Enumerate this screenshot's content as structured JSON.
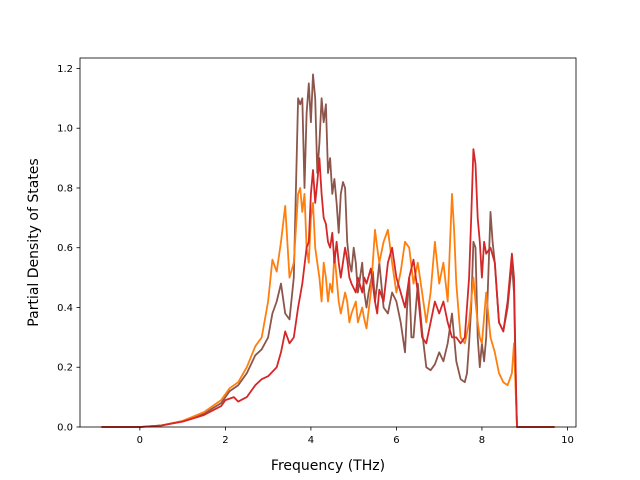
{
  "chart_data": {
    "type": "line",
    "title": "",
    "xlabel": "Frequency (THz)",
    "ylabel": "Partial Density of States",
    "xlim": [
      -1.4,
      10.2
    ],
    "ylim": [
      0.0,
      1.235
    ],
    "xticks": [
      0,
      2,
      4,
      6,
      8,
      10
    ],
    "yticks": [
      0.0,
      0.2,
      0.4,
      0.6,
      0.8,
      1.0,
      1.2
    ],
    "xtick_labels": [
      "0",
      "2",
      "4",
      "6",
      "8",
      "10"
    ],
    "ytick_labels": [
      "0.0",
      "0.2",
      "0.4",
      "0.6",
      "0.8",
      "1.0",
      "1.2"
    ],
    "grid": false,
    "legend": "none",
    "series": [
      {
        "color": "#8c564b",
        "points": [
          [
            -0.9,
            0
          ],
          [
            0,
            0
          ],
          [
            0.5,
            0.005
          ],
          [
            1.0,
            0.02
          ],
          [
            1.5,
            0.045
          ],
          [
            1.9,
            0.08
          ],
          [
            2.1,
            0.12
          ],
          [
            2.3,
            0.14
          ],
          [
            2.5,
            0.18
          ],
          [
            2.7,
            0.24
          ],
          [
            2.85,
            0.26
          ],
          [
            3.0,
            0.3
          ],
          [
            3.1,
            0.38
          ],
          [
            3.2,
            0.42
          ],
          [
            3.3,
            0.48
          ],
          [
            3.4,
            0.38
          ],
          [
            3.5,
            0.36
          ],
          [
            3.6,
            0.5
          ],
          [
            3.7,
            1.1
          ],
          [
            3.75,
            1.08
          ],
          [
            3.8,
            1.1
          ],
          [
            3.85,
            0.8
          ],
          [
            3.9,
            1.05
          ],
          [
            3.95,
            1.15
          ],
          [
            4.0,
            1.02
          ],
          [
            4.05,
            1.18
          ],
          [
            4.1,
            1.1
          ],
          [
            4.15,
            0.85
          ],
          [
            4.2,
            0.95
          ],
          [
            4.25,
            1.1
          ],
          [
            4.3,
            1.02
          ],
          [
            4.35,
            1.08
          ],
          [
            4.4,
            0.85
          ],
          [
            4.45,
            0.9
          ],
          [
            4.5,
            0.78
          ],
          [
            4.55,
            0.83
          ],
          [
            4.6,
            0.75
          ],
          [
            4.65,
            0.65
          ],
          [
            4.7,
            0.78
          ],
          [
            4.75,
            0.82
          ],
          [
            4.8,
            0.8
          ],
          [
            4.85,
            0.62
          ],
          [
            4.9,
            0.55
          ],
          [
            4.95,
            0.52
          ],
          [
            5.0,
            0.6
          ],
          [
            5.05,
            0.55
          ],
          [
            5.1,
            0.45
          ],
          [
            5.2,
            0.55
          ],
          [
            5.25,
            0.45
          ],
          [
            5.3,
            0.4
          ],
          [
            5.35,
            0.45
          ],
          [
            5.45,
            0.52
          ],
          [
            5.5,
            0.42
          ],
          [
            5.55,
            0.48
          ],
          [
            5.6,
            0.55
          ],
          [
            5.7,
            0.4
          ],
          [
            5.8,
            0.38
          ],
          [
            5.9,
            0.45
          ],
          [
            6.0,
            0.42
          ],
          [
            6.1,
            0.35
          ],
          [
            6.2,
            0.25
          ],
          [
            6.25,
            0.4
          ],
          [
            6.3,
            0.5
          ],
          [
            6.35,
            0.3
          ],
          [
            6.4,
            0.3
          ],
          [
            6.5,
            0.48
          ],
          [
            6.6,
            0.32
          ],
          [
            6.7,
            0.2
          ],
          [
            6.8,
            0.19
          ],
          [
            6.9,
            0.21
          ],
          [
            7.0,
            0.25
          ],
          [
            7.1,
            0.22
          ],
          [
            7.2,
            0.28
          ],
          [
            7.3,
            0.38
          ],
          [
            7.4,
            0.22
          ],
          [
            7.5,
            0.16
          ],
          [
            7.6,
            0.15
          ],
          [
            7.65,
            0.18
          ],
          [
            7.7,
            0.28
          ],
          [
            7.75,
            0.4
          ],
          [
            7.8,
            0.62
          ],
          [
            7.85,
            0.6
          ],
          [
            7.9,
            0.3
          ],
          [
            7.95,
            0.2
          ],
          [
            8.0,
            0.28
          ],
          [
            8.05,
            0.22
          ],
          [
            8.1,
            0.3
          ],
          [
            8.2,
            0.72
          ],
          [
            8.25,
            0.62
          ],
          [
            8.3,
            0.55
          ],
          [
            8.4,
            0.35
          ],
          [
            8.5,
            0.32
          ],
          [
            8.6,
            0.4
          ],
          [
            8.7,
            0.55
          ],
          [
            8.75,
            0.45
          ],
          [
            8.8,
            0.1
          ],
          [
            8.82,
            0
          ],
          [
            9.7,
            0
          ]
        ]
      },
      {
        "color": "#ff7f0e",
        "points": [
          [
            -0.9,
            0
          ],
          [
            0,
            0
          ],
          [
            0.5,
            0.005
          ],
          [
            1.0,
            0.02
          ],
          [
            1.5,
            0.05
          ],
          [
            1.9,
            0.09
          ],
          [
            2.1,
            0.13
          ],
          [
            2.3,
            0.15
          ],
          [
            2.5,
            0.2
          ],
          [
            2.7,
            0.27
          ],
          [
            2.85,
            0.3
          ],
          [
            3.0,
            0.42
          ],
          [
            3.1,
            0.56
          ],
          [
            3.2,
            0.52
          ],
          [
            3.3,
            0.62
          ],
          [
            3.4,
            0.74
          ],
          [
            3.5,
            0.5
          ],
          [
            3.6,
            0.55
          ],
          [
            3.7,
            0.78
          ],
          [
            3.75,
            0.8
          ],
          [
            3.8,
            0.72
          ],
          [
            3.85,
            0.78
          ],
          [
            3.9,
            0.6
          ],
          [
            3.95,
            0.55
          ],
          [
            4.0,
            0.7
          ],
          [
            4.05,
            0.75
          ],
          [
            4.1,
            0.6
          ],
          [
            4.15,
            0.55
          ],
          [
            4.2,
            0.5
          ],
          [
            4.25,
            0.42
          ],
          [
            4.3,
            0.55
          ],
          [
            4.35,
            0.5
          ],
          [
            4.4,
            0.42
          ],
          [
            4.45,
            0.48
          ],
          [
            4.5,
            0.45
          ],
          [
            4.55,
            0.58
          ],
          [
            4.6,
            0.5
          ],
          [
            4.65,
            0.42
          ],
          [
            4.7,
            0.38
          ],
          [
            4.8,
            0.45
          ],
          [
            4.85,
            0.42
          ],
          [
            4.9,
            0.35
          ],
          [
            4.95,
            0.38
          ],
          [
            5.05,
            0.42
          ],
          [
            5.1,
            0.35
          ],
          [
            5.2,
            0.4
          ],
          [
            5.25,
            0.36
          ],
          [
            5.3,
            0.33
          ],
          [
            5.4,
            0.45
          ],
          [
            5.5,
            0.66
          ],
          [
            5.55,
            0.6
          ],
          [
            5.6,
            0.55
          ],
          [
            5.7,
            0.62
          ],
          [
            5.8,
            0.66
          ],
          [
            5.9,
            0.55
          ],
          [
            6.0,
            0.45
          ],
          [
            6.1,
            0.52
          ],
          [
            6.2,
            0.62
          ],
          [
            6.3,
            0.6
          ],
          [
            6.4,
            0.48
          ],
          [
            6.5,
            0.55
          ],
          [
            6.6,
            0.45
          ],
          [
            6.7,
            0.35
          ],
          [
            6.8,
            0.45
          ],
          [
            6.9,
            0.62
          ],
          [
            7.0,
            0.48
          ],
          [
            7.1,
            0.55
          ],
          [
            7.2,
            0.42
          ],
          [
            7.3,
            0.78
          ],
          [
            7.35,
            0.66
          ],
          [
            7.4,
            0.48
          ],
          [
            7.5,
            0.3
          ],
          [
            7.6,
            0.28
          ],
          [
            7.7,
            0.35
          ],
          [
            7.8,
            0.5
          ],
          [
            7.85,
            0.42
          ],
          [
            7.9,
            0.35
          ],
          [
            7.95,
            0.3
          ],
          [
            8.0,
            0.28
          ],
          [
            8.1,
            0.45
          ],
          [
            8.2,
            0.3
          ],
          [
            8.3,
            0.25
          ],
          [
            8.4,
            0.18
          ],
          [
            8.5,
            0.15
          ],
          [
            8.6,
            0.14
          ],
          [
            8.7,
            0.18
          ],
          [
            8.75,
            0.28
          ],
          [
            8.8,
            0.08
          ],
          [
            8.82,
            0
          ],
          [
            9.7,
            0
          ]
        ]
      },
      {
        "color": "#d62728",
        "points": [
          [
            -0.9,
            0
          ],
          [
            0,
            0
          ],
          [
            0.5,
            0.005
          ],
          [
            1.0,
            0.018
          ],
          [
            1.5,
            0.04
          ],
          [
            1.9,
            0.07
          ],
          [
            2.0,
            0.09
          ],
          [
            2.2,
            0.1
          ],
          [
            2.3,
            0.085
          ],
          [
            2.5,
            0.1
          ],
          [
            2.7,
            0.14
          ],
          [
            2.85,
            0.16
          ],
          [
            3.0,
            0.17
          ],
          [
            3.2,
            0.2
          ],
          [
            3.3,
            0.25
          ],
          [
            3.4,
            0.32
          ],
          [
            3.5,
            0.28
          ],
          [
            3.6,
            0.3
          ],
          [
            3.7,
            0.4
          ],
          [
            3.8,
            0.48
          ],
          [
            3.9,
            0.6
          ],
          [
            3.95,
            0.62
          ],
          [
            4.0,
            0.78
          ],
          [
            4.05,
            0.86
          ],
          [
            4.1,
            0.75
          ],
          [
            4.15,
            0.82
          ],
          [
            4.2,
            0.9
          ],
          [
            4.25,
            0.78
          ],
          [
            4.3,
            0.7
          ],
          [
            4.35,
            0.68
          ],
          [
            4.4,
            0.62
          ],
          [
            4.45,
            0.6
          ],
          [
            4.5,
            0.65
          ],
          [
            4.55,
            0.55
          ],
          [
            4.6,
            0.62
          ],
          [
            4.65,
            0.55
          ],
          [
            4.7,
            0.5
          ],
          [
            4.8,
            0.6
          ],
          [
            4.85,
            0.56
          ],
          [
            4.9,
            0.5
          ],
          [
            4.95,
            0.48
          ],
          [
            5.05,
            0.45
          ],
          [
            5.1,
            0.5
          ],
          [
            5.2,
            0.45
          ],
          [
            5.25,
            0.5
          ],
          [
            5.3,
            0.48
          ],
          [
            5.4,
            0.53
          ],
          [
            5.5,
            0.42
          ],
          [
            5.55,
            0.38
          ],
          [
            5.6,
            0.46
          ],
          [
            5.7,
            0.42
          ],
          [
            5.8,
            0.55
          ],
          [
            5.9,
            0.6
          ],
          [
            6.0,
            0.5
          ],
          [
            6.1,
            0.45
          ],
          [
            6.2,
            0.4
          ],
          [
            6.3,
            0.5
          ],
          [
            6.4,
            0.56
          ],
          [
            6.5,
            0.45
          ],
          [
            6.6,
            0.3
          ],
          [
            6.7,
            0.28
          ],
          [
            6.8,
            0.35
          ],
          [
            6.9,
            0.42
          ],
          [
            7.0,
            0.38
          ],
          [
            7.1,
            0.42
          ],
          [
            7.2,
            0.35
          ],
          [
            7.3,
            0.3
          ],
          [
            7.4,
            0.3
          ],
          [
            7.5,
            0.28
          ],
          [
            7.6,
            0.3
          ],
          [
            7.7,
            0.5
          ],
          [
            7.75,
            0.7
          ],
          [
            7.8,
            0.93
          ],
          [
            7.85,
            0.88
          ],
          [
            7.9,
            0.7
          ],
          [
            7.95,
            0.62
          ],
          [
            8.0,
            0.5
          ],
          [
            8.05,
            0.62
          ],
          [
            8.1,
            0.58
          ],
          [
            8.2,
            0.6
          ],
          [
            8.3,
            0.55
          ],
          [
            8.4,
            0.35
          ],
          [
            8.5,
            0.32
          ],
          [
            8.6,
            0.42
          ],
          [
            8.7,
            0.58
          ],
          [
            8.75,
            0.5
          ],
          [
            8.8,
            0.12
          ],
          [
            8.82,
            0
          ],
          [
            9.7,
            0
          ]
        ]
      }
    ]
  }
}
